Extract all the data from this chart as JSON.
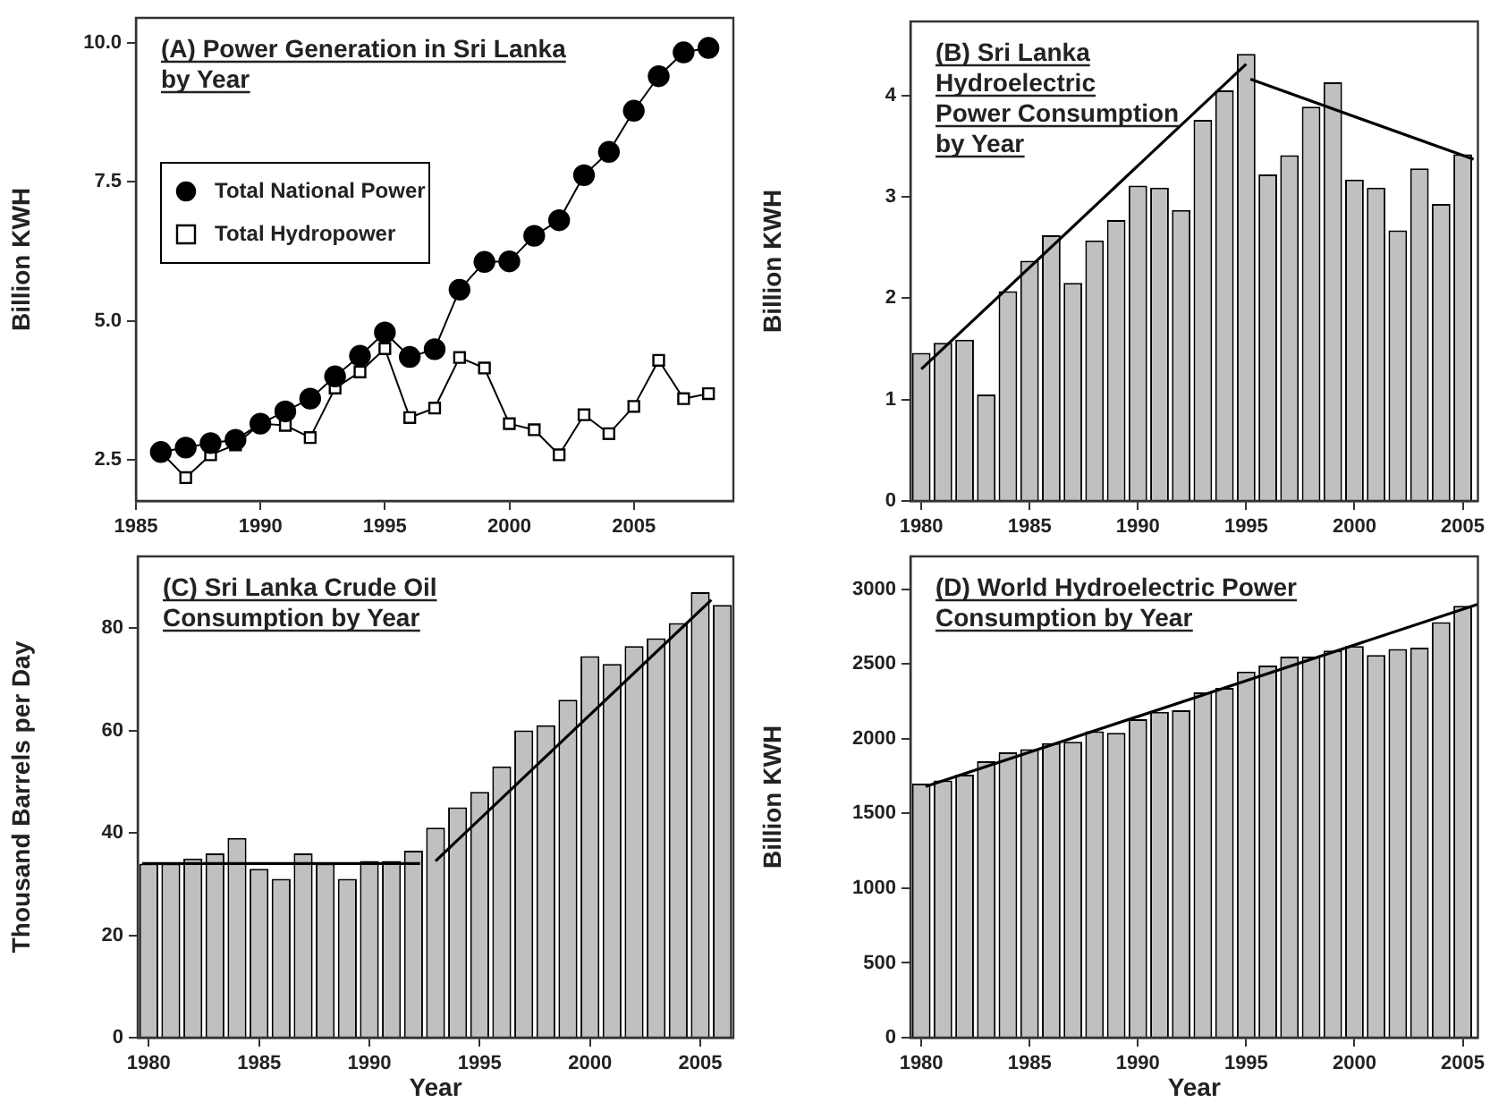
{
  "chart_data": [
    {
      "type": "line",
      "title": "(A) Power Generation in Sri Lanka\nby Year",
      "ylabel": "Billion KWH",
      "legend": "left",
      "xlim": [
        1985,
        2009
      ],
      "xticks": [
        1985,
        1990,
        1995,
        2000,
        2005
      ],
      "ylim": [
        1.76,
        10.45
      ],
      "yticks": [
        2.5,
        {
          "value": 5,
          "label": "5.0"
        },
        7.5,
        {
          "value": 10,
          "label": "10.0"
        }
      ],
      "x": [
        1986,
        1987,
        1988,
        1989,
        1990,
        1991,
        1992,
        1993,
        1994,
        1995,
        1996,
        1997,
        1998,
        1999,
        2000,
        2001,
        2002,
        2003,
        2004,
        2005,
        2006,
        2007,
        2008
      ],
      "series": [
        {
          "name": "Total National Power",
          "color": "#000000",
          "marker": "circle",
          "values": [
            2.64,
            2.72,
            2.8,
            2.86,
            3.15,
            3.37,
            3.6,
            4.0,
            4.37,
            4.79,
            4.35,
            4.49,
            5.56,
            6.06,
            6.07,
            6.53,
            6.81,
            7.62,
            8.04,
            8.78,
            9.4,
            9.83,
            9.91
          ]
        },
        {
          "name": "Total Hydropower",
          "color": "#000000",
          "marker": "square",
          "values": [
            2.64,
            2.18,
            2.59,
            2.77,
            3.15,
            3.12,
            2.9,
            3.79,
            4.08,
            4.5,
            3.26,
            3.43,
            4.34,
            4.15,
            3.15,
            3.04,
            2.59,
            3.31,
            2.97,
            3.46,
            4.29,
            3.6,
            3.69
          ]
        }
      ]
    },
    {
      "type": "bar",
      "title": "(B) Sri Lanka\nHydroelectric\nPower Consumption\nby Year",
      "ylabel": "Billion KWH",
      "xlim": [
        1979.5,
        2005.7
      ],
      "xticks": [
        1980,
        1985,
        1990,
        1995,
        2000,
        2005
      ],
      "ylim": [
        0,
        4.73
      ],
      "yticks": [
        0,
        1,
        2,
        3,
        4
      ],
      "x": [
        1980,
        1981,
        1982,
        1983,
        1984,
        1985,
        1986,
        1987,
        1988,
        1989,
        1990,
        1991,
        1992,
        1993,
        1994,
        1995,
        1996,
        1997,
        1998,
        1999,
        2000,
        2001,
        2002,
        2003,
        2004,
        2005
      ],
      "series": [
        {
          "color": "#c0c0c0",
          "values": [
            1.46,
            1.56,
            1.59,
            1.05,
            2.07,
            2.37,
            2.62,
            2.15,
            2.57,
            2.77,
            3.11,
            3.09,
            2.87,
            3.76,
            4.05,
            4.41,
            3.22,
            3.41,
            3.89,
            4.13,
            3.17,
            3.09,
            2.67,
            3.28,
            2.93,
            3.42
          ]
        },
        {
          "type": "line",
          "color": "#000000",
          "marker": "none",
          "x": [
            1980,
            1995
          ],
          "values": [
            1.3,
            4.31
          ]
        },
        {
          "type": "line",
          "color": "#000000",
          "marker": "none",
          "x": [
            1995.2,
            2005.5
          ],
          "values": [
            4.16,
            3.37
          ]
        }
      ]
    },
    {
      "type": "bar",
      "title": "(C) Sri Lanka Crude Oil\nConsumption by Year",
      "xlabel": "Year",
      "ylabel": "Thousand Barrels per Day",
      "xlim": [
        1979.5,
        2006.5
      ],
      "xticks": [
        1980,
        1985,
        1990,
        1995,
        2000,
        2005
      ],
      "ylim": [
        0,
        94
      ],
      "yticks": [
        0,
        20,
        40,
        60,
        80
      ],
      "x": [
        1980,
        1981,
        1982,
        1983,
        1984,
        1985,
        1986,
        1987,
        1988,
        1989,
        1990,
        1991,
        1992,
        1993,
        1994,
        1995,
        1996,
        1997,
        1998,
        1999,
        2000,
        2001,
        2002,
        2003,
        2004,
        2005,
        2006
      ],
      "series": [
        {
          "color": "#c0c0c0",
          "values": [
            34,
            34,
            35,
            36,
            39,
            33,
            31,
            36,
            34,
            31,
            34.5,
            34.5,
            36.5,
            41,
            45,
            48,
            53,
            60,
            61,
            66,
            74.5,
            73,
            76.5,
            78,
            81,
            87,
            84.5
          ]
        },
        {
          "type": "line",
          "color": "#000000",
          "marker": "none",
          "x": [
            1979.7,
            1992.3
          ],
          "values": [
            34,
            34
          ]
        },
        {
          "type": "line",
          "color": "#000000",
          "marker": "none",
          "x": [
            1993,
            2005.5
          ],
          "values": [
            34.5,
            85.5
          ]
        }
      ]
    },
    {
      "type": "bar",
      "title": "(D) World Hydroelectric Power\nConsumption by Year",
      "xlabel": "Year",
      "ylabel": "Billion KWH",
      "xlim": [
        1979.5,
        2005.7
      ],
      "xticks": [
        1980,
        1985,
        1990,
        1995,
        2000,
        2005
      ],
      "ylim": [
        0,
        3220
      ],
      "yticks": [
        0,
        500,
        1000,
        1500,
        2000,
        2500,
        3000
      ],
      "x": [
        1980,
        1981,
        1982,
        1983,
        1984,
        1985,
        1986,
        1987,
        1988,
        1989,
        1990,
        1991,
        1992,
        1993,
        1994,
        1995,
        1996,
        1997,
        1998,
        1999,
        2000,
        2001,
        2002,
        2003,
        2004,
        2005
      ],
      "series": [
        {
          "color": "#c0c0c0",
          "values": [
            1700,
            1720,
            1760,
            1850,
            1910,
            1930,
            1970,
            1980,
            2050,
            2040,
            2130,
            2180,
            2190,
            2310,
            2340,
            2450,
            2490,
            2550,
            2550,
            2590,
            2620,
            2560,
            2600,
            2610,
            2780,
            2890
          ]
        },
        {
          "type": "line",
          "color": "#000000",
          "marker": "none",
          "x": [
            1980.2,
            2005.7
          ],
          "values": [
            1680,
            2900
          ]
        }
      ]
    }
  ]
}
